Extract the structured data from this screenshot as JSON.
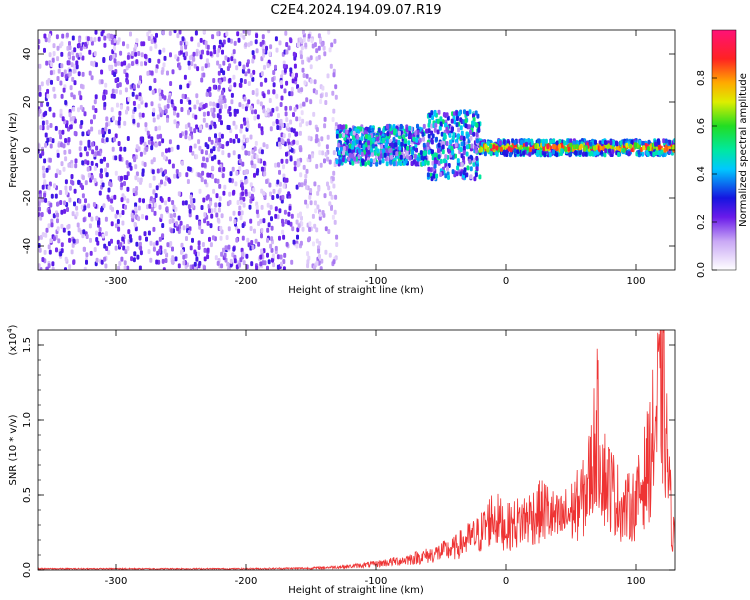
{
  "title": "C2E4.2024.194.09.07.R19",
  "chart_data": [
    {
      "type": "heatmap",
      "xlabel": "Height of straight line (km)",
      "ylabel": "Frequency (Hz)",
      "xlim": [
        -360,
        130
      ],
      "ylim": [
        -50,
        50
      ],
      "x_ticks": [
        -300,
        -200,
        -100,
        0,
        100
      ],
      "y_ticks": [
        -40,
        -20,
        0,
        20,
        40
      ],
      "description_regions": [
        {
          "x_range": [
            -360,
            -160
          ],
          "y_range": [
            -50,
            50
          ],
          "level": 0.15,
          "density": 0.6
        },
        {
          "x_range": [
            -160,
            -130
          ],
          "y_range": [
            -50,
            50
          ],
          "level": 0.1,
          "density": 0.25
        },
        {
          "x_range": [
            -130,
            -20
          ],
          "y_center": 2,
          "y_halfwidth": 8,
          "level": 0.3
        },
        {
          "x_range": [
            -20,
            130
          ],
          "y_center": 1,
          "y_halfwidth": 3,
          "level": 0.75
        }
      ],
      "colorbar": {
        "label": "Normalized spectral amplitude",
        "ticks": [
          0.0,
          0.2,
          0.4,
          0.6,
          0.8
        ],
        "tick_labels": [
          "0.0",
          "0.2",
          "0.4",
          "0.6",
          "0.8"
        ],
        "range": [
          0,
          1
        ]
      }
    },
    {
      "type": "line",
      "xlabel": "Height of straight line (km)",
      "ylabel": "SNR (10 * v/v)",
      "y_multiplier": "(x10",
      "y_multiplier_exp": "4",
      "y_multiplier_close": ")",
      "xlim": [
        -360,
        130
      ],
      "ylim": [
        0,
        1.6
      ],
      "x_ticks": [
        -300,
        -200,
        -100,
        0,
        100
      ],
      "y_ticks": [
        0.0,
        0.5,
        1.0,
        1.5
      ],
      "y_tick_labels": [
        "0.0",
        "0.5",
        "1.0",
        "1.5"
      ],
      "series": [
        {
          "color": "#ee3333",
          "x": [
            -360,
            -300,
            -200,
            -150,
            -120,
            -100,
            -80,
            -60,
            -40,
            -30,
            -20,
            -10,
            0,
            10,
            20,
            30,
            40,
            50,
            60,
            65,
            70,
            75,
            80,
            90,
            100,
            110,
            115,
            120,
            125,
            128
          ],
          "y": [
            0.01,
            0.01,
            0.01,
            0.015,
            0.03,
            0.05,
            0.08,
            0.12,
            0.18,
            0.25,
            0.3,
            0.45,
            0.35,
            0.4,
            0.45,
            0.5,
            0.4,
            0.48,
            0.6,
            0.8,
            1.2,
            0.8,
            0.7,
            0.5,
            0.55,
            0.9,
            1.2,
            1.58,
            0.8,
            0.3
          ]
        }
      ]
    }
  ]
}
